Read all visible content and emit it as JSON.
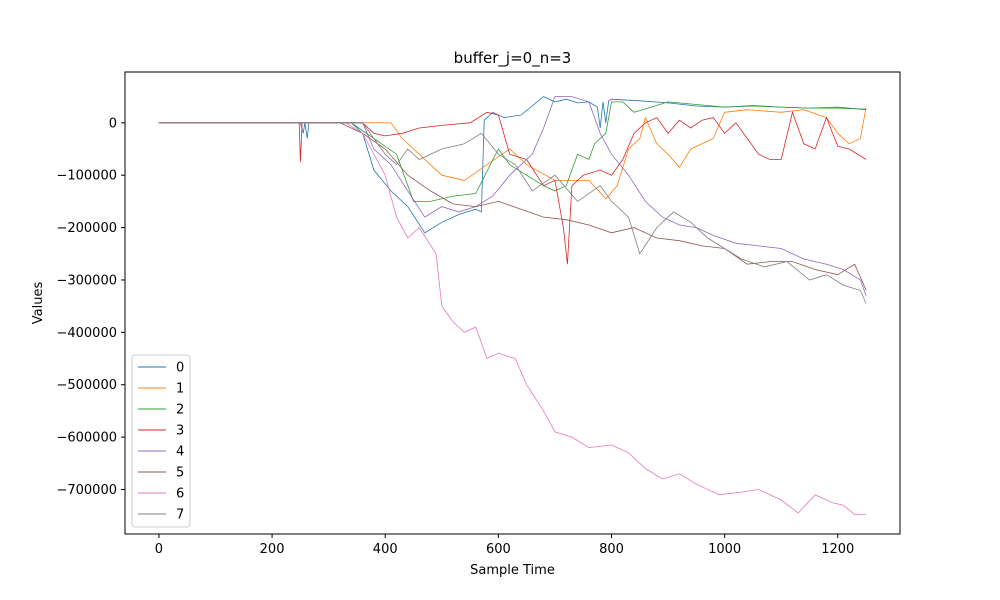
{
  "chart_data": {
    "type": "line",
    "title": "buffer_j=0_n=3",
    "xlabel": "Sample Time",
    "ylabel": "Values",
    "xlim": [
      -60,
      1310
    ],
    "ylim": [
      -785000,
      97000
    ],
    "xticks": [
      0,
      200,
      400,
      600,
      800,
      1000,
      1200
    ],
    "xtick_labels": [
      "0",
      "200",
      "400",
      "600",
      "800",
      "1000",
      "1200"
    ],
    "yticks": [
      0,
      -100000,
      -200000,
      -300000,
      -400000,
      -500000,
      -600000,
      -700000
    ],
    "ytick_labels": [
      "0",
      "−100000",
      "−200000",
      "−300000",
      "−400000",
      "−500000",
      "−600000",
      "−700000"
    ],
    "grid": false,
    "legend_position": "lower-left",
    "series": [
      {
        "name": "0",
        "color": "#1f77b4",
        "points": [
          [
            0,
            0
          ],
          [
            250,
            0
          ],
          [
            255,
            -20000
          ],
          [
            258,
            0
          ],
          [
            262,
            -30000
          ],
          [
            265,
            0
          ],
          [
            340,
            0
          ],
          [
            360,
            -20000
          ],
          [
            380,
            -90000
          ],
          [
            410,
            -130000
          ],
          [
            440,
            -160000
          ],
          [
            470,
            -210000
          ],
          [
            500,
            -190000
          ],
          [
            530,
            -175000
          ],
          [
            560,
            -165000
          ],
          [
            570,
            -170000
          ],
          [
            575,
            5000
          ],
          [
            590,
            20000
          ],
          [
            610,
            10000
          ],
          [
            640,
            15000
          ],
          [
            680,
            50000
          ],
          [
            700,
            40000
          ],
          [
            720,
            45000
          ],
          [
            740,
            38000
          ],
          [
            760,
            40000
          ],
          [
            775,
            30000
          ],
          [
            780,
            -10000
          ],
          [
            785,
            40000
          ],
          [
            790,
            0
          ],
          [
            795,
            42000
          ],
          [
            800,
            45000
          ],
          [
            850,
            42000
          ],
          [
            900,
            38000
          ],
          [
            950,
            32000
          ],
          [
            1000,
            30000
          ],
          [
            1050,
            33000
          ],
          [
            1100,
            30000
          ],
          [
            1150,
            28000
          ],
          [
            1200,
            30000
          ],
          [
            1250,
            25000
          ]
        ]
      },
      {
        "name": "1",
        "color": "#ff7f0e",
        "points": [
          [
            0,
            0
          ],
          [
            410,
            0
          ],
          [
            430,
            -30000
          ],
          [
            460,
            -60000
          ],
          [
            500,
            -100000
          ],
          [
            540,
            -110000
          ],
          [
            580,
            -80000
          ],
          [
            620,
            -50000
          ],
          [
            650,
            -80000
          ],
          [
            700,
            -110000
          ],
          [
            760,
            -110000
          ],
          [
            790,
            -145000
          ],
          [
            810,
            -120000
          ],
          [
            830,
            -50000
          ],
          [
            850,
            -30000
          ],
          [
            860,
            10000
          ],
          [
            880,
            -40000
          ],
          [
            900,
            -60000
          ],
          [
            920,
            -85000
          ],
          [
            940,
            -50000
          ],
          [
            960,
            -40000
          ],
          [
            980,
            -30000
          ],
          [
            1000,
            20000
          ],
          [
            1040,
            25000
          ],
          [
            1100,
            20000
          ],
          [
            1140,
            25000
          ],
          [
            1180,
            10000
          ],
          [
            1200,
            -20000
          ],
          [
            1220,
            -40000
          ],
          [
            1240,
            -30000
          ],
          [
            1250,
            30000
          ]
        ]
      },
      {
        "name": "2",
        "color": "#2ca02c",
        "points": [
          [
            0,
            0
          ],
          [
            340,
            0
          ],
          [
            380,
            -30000
          ],
          [
            420,
            -60000
          ],
          [
            450,
            -150000
          ],
          [
            480,
            -150000
          ],
          [
            520,
            -140000
          ],
          [
            560,
            -135000
          ],
          [
            600,
            -50000
          ],
          [
            620,
            -80000
          ],
          [
            650,
            -100000
          ],
          [
            680,
            -120000
          ],
          [
            700,
            -130000
          ],
          [
            720,
            -120000
          ],
          [
            740,
            -60000
          ],
          [
            760,
            -70000
          ],
          [
            770,
            -40000
          ],
          [
            790,
            -20000
          ],
          [
            800,
            40000
          ],
          [
            820,
            40000
          ],
          [
            840,
            20000
          ],
          [
            870,
            30000
          ],
          [
            900,
            40000
          ],
          [
            950,
            35000
          ],
          [
            1000,
            30000
          ],
          [
            1050,
            32000
          ],
          [
            1100,
            30000
          ],
          [
            1150,
            28000
          ],
          [
            1200,
            28000
          ],
          [
            1250,
            26000
          ]
        ]
      },
      {
        "name": "3",
        "color": "#d62728",
        "points": [
          [
            0,
            0
          ],
          [
            248,
            0
          ],
          [
            250,
            -75000
          ],
          [
            253,
            0
          ],
          [
            360,
            0
          ],
          [
            380,
            -20000
          ],
          [
            400,
            -25000
          ],
          [
            430,
            -20000
          ],
          [
            460,
            -10000
          ],
          [
            500,
            -5000
          ],
          [
            550,
            0
          ],
          [
            580,
            20000
          ],
          [
            600,
            15000
          ],
          [
            620,
            -60000
          ],
          [
            650,
            -70000
          ],
          [
            680,
            -120000
          ],
          [
            700,
            -110000
          ],
          [
            715,
            -200000
          ],
          [
            722,
            -270000
          ],
          [
            730,
            -120000
          ],
          [
            750,
            -100000
          ],
          [
            780,
            -90000
          ],
          [
            800,
            -100000
          ],
          [
            820,
            -70000
          ],
          [
            840,
            -20000
          ],
          [
            860,
            0
          ],
          [
            880,
            10000
          ],
          [
            900,
            -20000
          ],
          [
            920,
            5000
          ],
          [
            940,
            -10000
          ],
          [
            960,
            5000
          ],
          [
            980,
            10000
          ],
          [
            1000,
            -20000
          ],
          [
            1020,
            0
          ],
          [
            1040,
            -30000
          ],
          [
            1060,
            -60000
          ],
          [
            1080,
            -70000
          ],
          [
            1100,
            -70000
          ],
          [
            1120,
            20000
          ],
          [
            1140,
            -40000
          ],
          [
            1160,
            -50000
          ],
          [
            1180,
            10000
          ],
          [
            1200,
            -45000
          ],
          [
            1220,
            -50000
          ],
          [
            1250,
            -70000
          ]
        ]
      },
      {
        "name": "4",
        "color": "#9467bd",
        "points": [
          [
            0,
            0
          ],
          [
            360,
            0
          ],
          [
            380,
            -50000
          ],
          [
            410,
            -80000
          ],
          [
            440,
            -130000
          ],
          [
            470,
            -180000
          ],
          [
            500,
            -160000
          ],
          [
            530,
            -170000
          ],
          [
            560,
            -160000
          ],
          [
            590,
            -140000
          ],
          [
            620,
            -100000
          ],
          [
            660,
            -60000
          ],
          [
            680,
            -10000
          ],
          [
            700,
            50000
          ],
          [
            730,
            50000
          ],
          [
            760,
            40000
          ],
          [
            780,
            -20000
          ],
          [
            800,
            -60000
          ],
          [
            830,
            -100000
          ],
          [
            860,
            -150000
          ],
          [
            890,
            -180000
          ],
          [
            920,
            -195000
          ],
          [
            950,
            -200000
          ],
          [
            980,
            -215000
          ],
          [
            1020,
            -230000
          ],
          [
            1060,
            -235000
          ],
          [
            1100,
            -240000
          ],
          [
            1140,
            -260000
          ],
          [
            1180,
            -270000
          ],
          [
            1210,
            -280000
          ],
          [
            1240,
            -300000
          ],
          [
            1250,
            -330000
          ]
        ]
      },
      {
        "name": "5",
        "color": "#8c564b",
        "points": [
          [
            0,
            0
          ],
          [
            320,
            0
          ],
          [
            360,
            -20000
          ],
          [
            400,
            -50000
          ],
          [
            440,
            -100000
          ],
          [
            480,
            -130000
          ],
          [
            520,
            -155000
          ],
          [
            560,
            -160000
          ],
          [
            600,
            -150000
          ],
          [
            640,
            -165000
          ],
          [
            680,
            -180000
          ],
          [
            720,
            -185000
          ],
          [
            760,
            -195000
          ],
          [
            800,
            -210000
          ],
          [
            840,
            -200000
          ],
          [
            880,
            -220000
          ],
          [
            920,
            -225000
          ],
          [
            960,
            -235000
          ],
          [
            1000,
            -240000
          ],
          [
            1040,
            -270000
          ],
          [
            1080,
            -265000
          ],
          [
            1120,
            -265000
          ],
          [
            1160,
            -280000
          ],
          [
            1200,
            -290000
          ],
          [
            1230,
            -270000
          ],
          [
            1250,
            -320000
          ]
        ]
      },
      {
        "name": "6",
        "color": "#e377c2",
        "points": [
          [
            0,
            0
          ],
          [
            330,
            0
          ],
          [
            360,
            -20000
          ],
          [
            380,
            -60000
          ],
          [
            400,
            -100000
          ],
          [
            420,
            -180000
          ],
          [
            440,
            -220000
          ],
          [
            460,
            -200000
          ],
          [
            490,
            -250000
          ],
          [
            500,
            -350000
          ],
          [
            520,
            -380000
          ],
          [
            540,
            -400000
          ],
          [
            560,
            -390000
          ],
          [
            580,
            -450000
          ],
          [
            600,
            -440000
          ],
          [
            630,
            -450000
          ],
          [
            650,
            -500000
          ],
          [
            680,
            -550000
          ],
          [
            700,
            -590000
          ],
          [
            730,
            -600000
          ],
          [
            760,
            -620000
          ],
          [
            800,
            -615000
          ],
          [
            830,
            -630000
          ],
          [
            860,
            -660000
          ],
          [
            890,
            -680000
          ],
          [
            920,
            -670000
          ],
          [
            950,
            -690000
          ],
          [
            990,
            -710000
          ],
          [
            1030,
            -705000
          ],
          [
            1060,
            -700000
          ],
          [
            1100,
            -720000
          ],
          [
            1130,
            -745000
          ],
          [
            1160,
            -710000
          ],
          [
            1190,
            -725000
          ],
          [
            1210,
            -730000
          ],
          [
            1230,
            -748000
          ],
          [
            1250,
            -748000
          ]
        ]
      },
      {
        "name": "7",
        "color": "#7f7f7f",
        "points": [
          [
            0,
            0
          ],
          [
            360,
            0
          ],
          [
            380,
            -30000
          ],
          [
            400,
            -60000
          ],
          [
            420,
            -80000
          ],
          [
            440,
            -50000
          ],
          [
            460,
            -70000
          ],
          [
            500,
            -50000
          ],
          [
            540,
            -40000
          ],
          [
            570,
            -20000
          ],
          [
            600,
            -60000
          ],
          [
            630,
            -80000
          ],
          [
            660,
            -130000
          ],
          [
            700,
            -100000
          ],
          [
            740,
            -150000
          ],
          [
            780,
            -120000
          ],
          [
            800,
            -150000
          ],
          [
            830,
            -180000
          ],
          [
            850,
            -250000
          ],
          [
            880,
            -200000
          ],
          [
            910,
            -170000
          ],
          [
            940,
            -190000
          ],
          [
            970,
            -220000
          ],
          [
            1000,
            -240000
          ],
          [
            1030,
            -260000
          ],
          [
            1070,
            -275000
          ],
          [
            1110,
            -265000
          ],
          [
            1150,
            -300000
          ],
          [
            1180,
            -290000
          ],
          [
            1210,
            -310000
          ],
          [
            1240,
            -320000
          ],
          [
            1250,
            -345000
          ]
        ]
      }
    ]
  }
}
